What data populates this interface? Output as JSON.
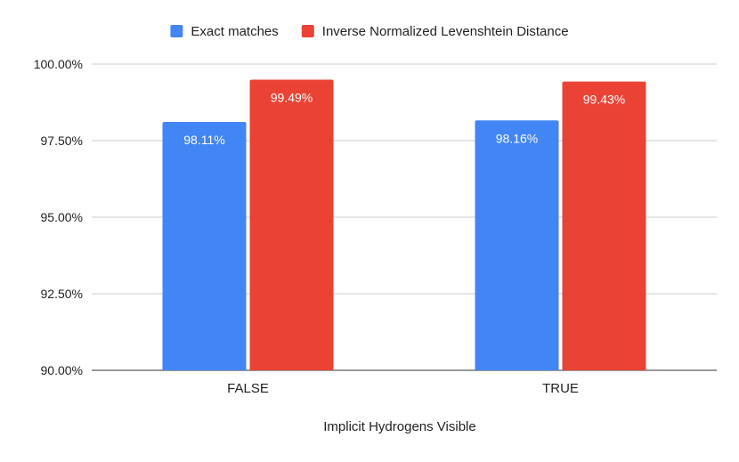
{
  "chart_data": {
    "type": "bar",
    "title": "",
    "xlabel": "Implicit Hydrogens Visible",
    "ylabel": "",
    "categories": [
      "FALSE",
      "TRUE"
    ],
    "series": [
      {
        "name": "Exact matches",
        "color": "#4285f4",
        "values": [
          98.11,
          98.16
        ],
        "labels": [
          "98.11%",
          "98.16%"
        ]
      },
      {
        "name": "Inverse Normalized Levenshtein Distance",
        "color": "#ea4335",
        "values": [
          99.49,
          99.43
        ],
        "labels": [
          "99.49%",
          "99.43%"
        ]
      }
    ],
    "ylim": [
      90,
      100
    ],
    "yticks": [
      90,
      92.5,
      95,
      97.5,
      100
    ],
    "ytick_labels": [
      "90.00%",
      "92.50%",
      "95.00%",
      "97.50%",
      "100.00%"
    ],
    "grid": true,
    "legend_position": "top"
  }
}
